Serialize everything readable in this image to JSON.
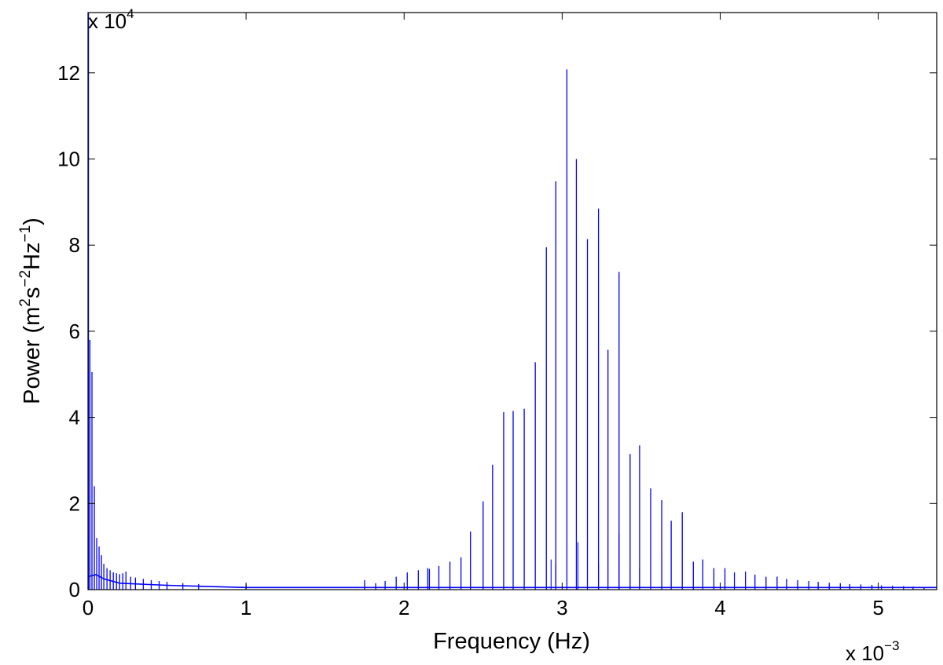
{
  "chart_data": {
    "type": "line",
    "xlabel": "Frequency (Hz)",
    "ylabel_parts": {
      "a": "Power (m",
      "b": "2",
      "c": "s",
      "d": "−2",
      "e": "Hz",
      "f": "−1",
      "g": ")"
    },
    "x_multiplier": {
      "base": "x 10",
      "exp": "−3"
    },
    "y_multiplier": {
      "base": "x 10",
      "exp": "4"
    },
    "xlim": [
      0,
      5.37
    ],
    "ylim": [
      0,
      13.4
    ],
    "x_unit_scale": 0.001,
    "y_unit_scale": 10000,
    "x_ticks": [
      0,
      1,
      2,
      3,
      4,
      5
    ],
    "x_tick_labels": [
      "0",
      "1",
      "2",
      "3",
      "4",
      "5"
    ],
    "y_ticks": [
      0,
      2,
      4,
      6,
      8,
      10,
      12
    ],
    "y_tick_labels": [
      "0",
      "2",
      "4",
      "6",
      "8",
      "10",
      "12"
    ],
    "grid": false,
    "color": "#0000ff",
    "series": [
      {
        "noise_floor": [
          [
            0.0,
            0.3
          ],
          [
            0.05,
            0.35
          ],
          [
            0.1,
            0.25
          ],
          [
            0.2,
            0.15
          ],
          [
            0.5,
            0.1
          ],
          [
            1.0,
            0.05
          ],
          [
            1.5,
            0.05
          ],
          [
            2.0,
            0.05
          ],
          [
            2.5,
            0.05
          ],
          [
            3.0,
            0.05
          ],
          [
            4.0,
            0.05
          ],
          [
            5.37,
            0.05
          ]
        ],
        "peaks": [
          [
            0.003,
            13.4
          ],
          [
            0.012,
            5.8
          ],
          [
            0.025,
            5.05
          ],
          [
            0.04,
            2.4
          ],
          [
            0.055,
            1.2
          ],
          [
            0.07,
            1.0
          ],
          [
            0.085,
            0.8
          ],
          [
            0.1,
            0.6
          ],
          [
            0.12,
            0.5
          ],
          [
            0.14,
            0.45
          ],
          [
            0.16,
            0.4
          ],
          [
            0.18,
            0.38
          ],
          [
            0.2,
            0.36
          ],
          [
            0.22,
            0.38
          ],
          [
            0.24,
            0.42
          ],
          [
            0.27,
            0.3
          ],
          [
            0.3,
            0.28
          ],
          [
            0.35,
            0.25
          ],
          [
            0.4,
            0.22
          ],
          [
            0.45,
            0.2
          ],
          [
            0.5,
            0.18
          ],
          [
            0.6,
            0.15
          ],
          [
            0.7,
            0.13
          ],
          [
            1.0,
            0.12
          ],
          [
            1.75,
            0.22
          ],
          [
            1.82,
            0.15
          ],
          [
            1.88,
            0.2
          ],
          [
            1.95,
            0.3
          ],
          [
            2.02,
            0.4
          ],
          [
            2.09,
            0.45
          ],
          [
            2.15,
            0.5
          ],
          [
            2.16,
            0.48
          ],
          [
            2.22,
            0.55
          ],
          [
            2.29,
            0.65
          ],
          [
            2.36,
            0.75
          ],
          [
            2.42,
            1.35
          ],
          [
            2.5,
            2.05
          ],
          [
            2.56,
            2.9
          ],
          [
            2.63,
            4.12
          ],
          [
            2.69,
            4.15
          ],
          [
            2.76,
            4.2
          ],
          [
            2.83,
            5.28
          ],
          [
            2.9,
            7.95
          ],
          [
            2.96,
            9.48
          ],
          [
            3.03,
            12.08
          ],
          [
            3.09,
            10.0
          ],
          [
            3.16,
            8.14
          ],
          [
            3.23,
            8.85
          ],
          [
            3.29,
            5.57
          ],
          [
            3.36,
            7.38
          ],
          [
            3.43,
            3.15
          ],
          [
            3.49,
            3.35
          ],
          [
            3.56,
            2.35
          ],
          [
            3.63,
            2.08
          ],
          [
            3.69,
            1.6
          ],
          [
            3.76,
            1.8
          ],
          [
            3.83,
            0.65
          ],
          [
            3.89,
            0.7
          ],
          [
            3.96,
            0.5
          ],
          [
            4.03,
            0.5
          ],
          [
            4.09,
            0.4
          ],
          [
            4.16,
            0.42
          ],
          [
            4.22,
            0.35
          ],
          [
            4.29,
            0.3
          ],
          [
            4.36,
            0.3
          ],
          [
            4.42,
            0.25
          ],
          [
            4.49,
            0.22
          ],
          [
            4.56,
            0.2
          ],
          [
            4.62,
            0.18
          ],
          [
            4.69,
            0.16
          ],
          [
            4.76,
            0.15
          ],
          [
            4.82,
            0.13
          ],
          [
            4.89,
            0.12
          ],
          [
            4.96,
            0.11
          ],
          [
            5.02,
            0.1
          ],
          [
            5.09,
            0.09
          ],
          [
            5.16,
            0.08
          ],
          [
            5.22,
            0.07
          ],
          [
            5.29,
            0.06
          ]
        ],
        "secondary_peaks": [
          [
            2.93,
            0.7
          ],
          [
            2.96,
            0.6
          ],
          [
            3.1,
            1.1
          ],
          [
            3.23,
            0.6
          ],
          [
            3.36,
            1.3
          ],
          [
            3.49,
            0.5
          ],
          [
            3.63,
            0.8
          ]
        ]
      }
    ]
  }
}
